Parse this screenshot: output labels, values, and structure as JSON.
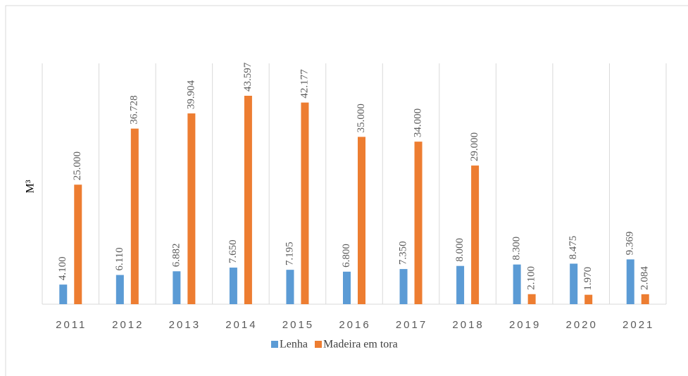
{
  "chart_data": {
    "type": "bar",
    "y_label": "M³",
    "categories": [
      "2011",
      "2012",
      "2013",
      "2014",
      "2015",
      "2016",
      "2017",
      "2018",
      "2019",
      "2020",
      "2021"
    ],
    "series": [
      {
        "name": "Lenha",
        "color": "#5b9bd5",
        "values": [
          4100,
          6110,
          6882,
          7650,
          7195,
          6800,
          7350,
          8000,
          8300,
          8475,
          9369
        ],
        "value_labels": [
          "4.100",
          "6.110",
          "6.882",
          "7.650",
          "7.195",
          "6.800",
          "7.350",
          "8.000",
          "8.300",
          "8.475",
          "9.369"
        ]
      },
      {
        "name": "Madeira em tora",
        "color": "#ed7d31",
        "values": [
          25000,
          36728,
          39904,
          43597,
          42177,
          35000,
          34000,
          29000,
          2100,
          1970,
          2084
        ],
        "value_labels": [
          "25.000",
          "36.728",
          "39.904",
          "43.597",
          "42.177",
          "35.000",
          "34.000",
          "29.000",
          "2.100",
          "1.970",
          "2.084"
        ]
      }
    ],
    "grid": true,
    "legend": "bottom"
  }
}
